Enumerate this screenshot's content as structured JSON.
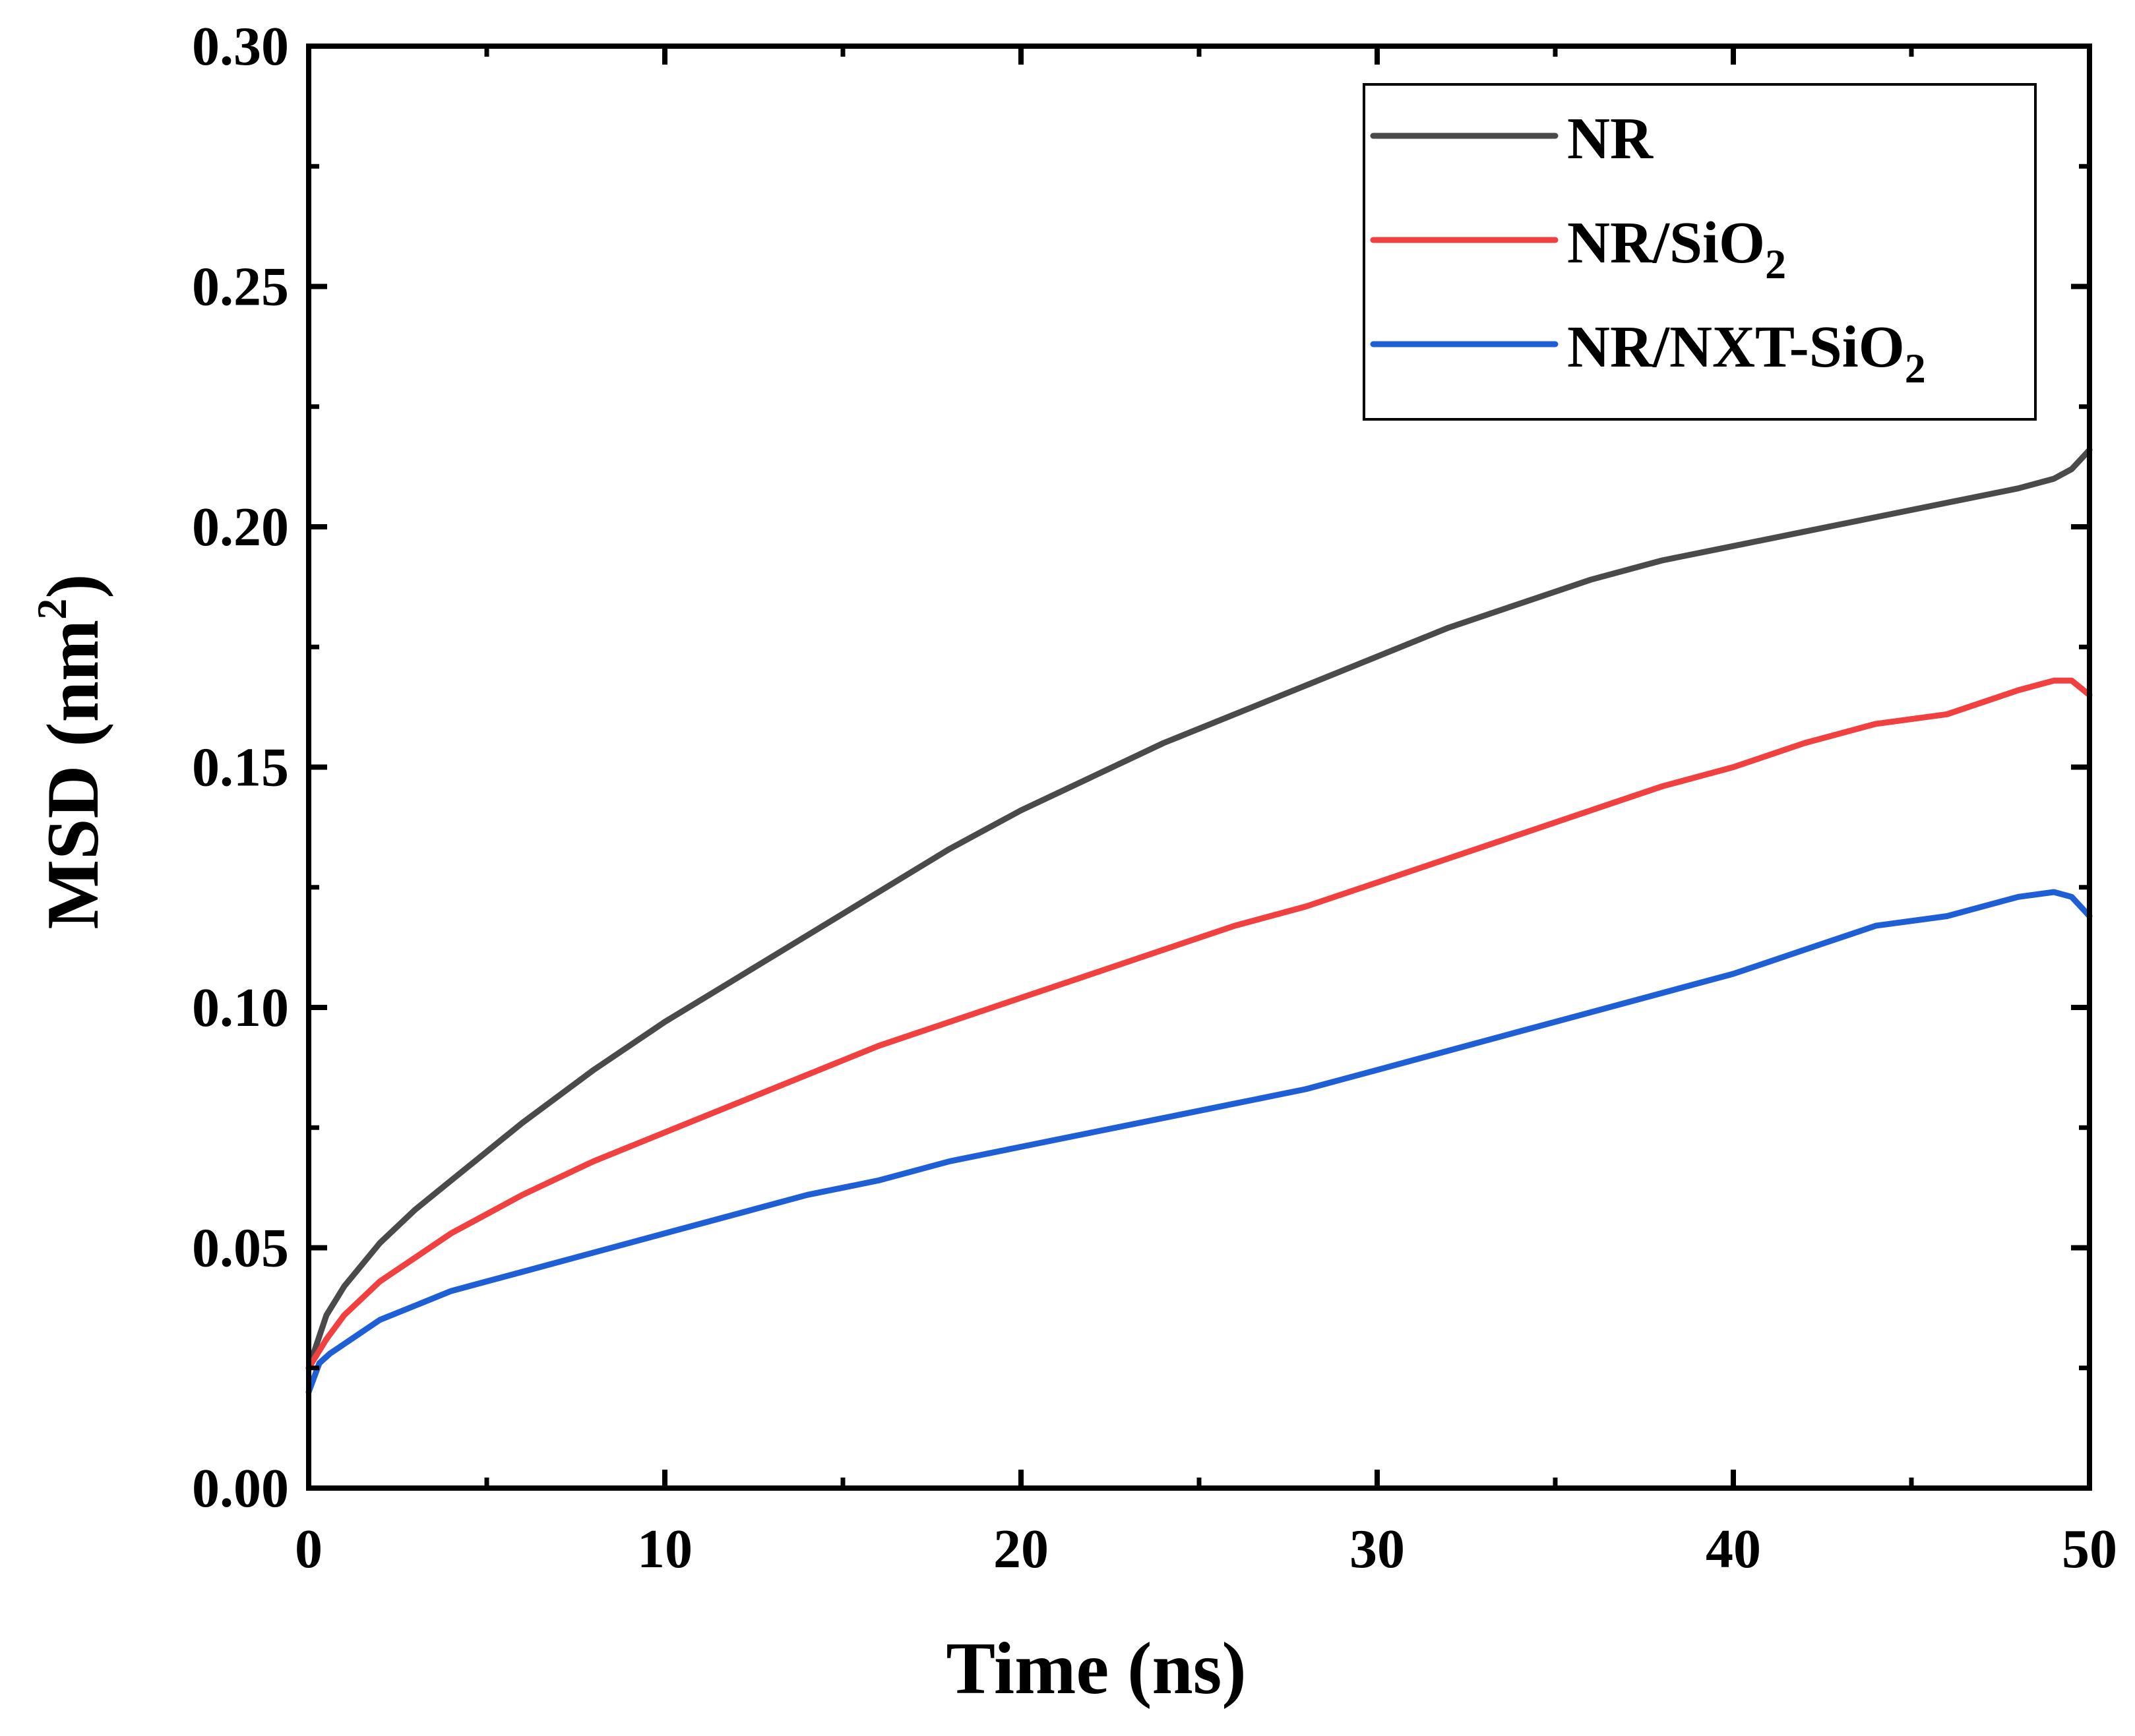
{
  "chart_data": {
    "type": "line",
    "title": "",
    "xlabel": "Time (ns)",
    "ylabel_main": "MSD (nm",
    "ylabel_sup": "2",
    "ylabel_close": ")",
    "xlim": [
      0,
      50
    ],
    "ylim": [
      0,
      0.3
    ],
    "xticks": [
      0,
      10,
      20,
      30,
      40,
      50
    ],
    "xtick_labels": [
      "0",
      "10",
      "20",
      "30",
      "40",
      "50"
    ],
    "yticks": [
      0.0,
      0.05,
      0.1,
      0.15,
      0.2,
      0.25,
      0.3
    ],
    "ytick_labels": [
      "0.00",
      "0.05",
      "0.10",
      "0.15",
      "0.20",
      "0.25",
      "0.30"
    ],
    "grid": false,
    "legend_position": "top-right",
    "series": [
      {
        "name": "NR",
        "legend_main": "NR",
        "legend_sub": "",
        "legend_tail": "",
        "color": "#4a4a4a",
        "x": [
          0,
          0.5,
          1,
          2,
          3,
          4,
          5,
          6,
          8,
          10,
          12,
          14,
          16,
          18,
          20,
          22,
          24,
          26,
          28,
          30,
          32,
          34,
          36,
          38,
          40,
          42,
          44,
          46,
          48,
          49,
          49.5,
          50
        ],
        "y": [
          0.025,
          0.036,
          0.042,
          0.051,
          0.058,
          0.064,
          0.07,
          0.076,
          0.087,
          0.097,
          0.106,
          0.115,
          0.124,
          0.133,
          0.141,
          0.148,
          0.155,
          0.161,
          0.167,
          0.173,
          0.179,
          0.184,
          0.189,
          0.193,
          0.196,
          0.199,
          0.202,
          0.205,
          0.208,
          0.21,
          0.212,
          0.216
        ]
      },
      {
        "name": "NR/SiO2",
        "legend_main": "NR/SiO",
        "legend_sub": "2",
        "legend_tail": "",
        "color": "#f04040",
        "x": [
          0,
          0.5,
          1,
          2,
          3,
          4,
          5,
          6,
          8,
          10,
          12,
          14,
          16,
          18,
          20,
          22,
          24,
          26,
          28,
          30,
          32,
          34,
          36,
          38,
          40,
          42,
          44,
          46,
          48,
          49,
          49.5,
          50
        ],
        "y": [
          0.025,
          0.031,
          0.036,
          0.043,
          0.048,
          0.053,
          0.057,
          0.061,
          0.068,
          0.074,
          0.08,
          0.086,
          0.092,
          0.097,
          0.102,
          0.107,
          0.112,
          0.117,
          0.121,
          0.126,
          0.131,
          0.136,
          0.141,
          0.146,
          0.15,
          0.155,
          0.159,
          0.161,
          0.166,
          0.168,
          0.168,
          0.165
        ]
      },
      {
        "name": "NR/NXT-SiO2",
        "legend_main": "NR/NXT-SiO",
        "legend_sub": "2",
        "legend_tail": "",
        "color": "#1f5fd6",
        "x": [
          0,
          0.3,
          0.6,
          1,
          2,
          3,
          4,
          5,
          6,
          8,
          10,
          12,
          14,
          16,
          18,
          20,
          22,
          24,
          26,
          28,
          30,
          32,
          34,
          36,
          38,
          40,
          42,
          44,
          46,
          48,
          49,
          49.5,
          50
        ],
        "y": [
          0.02,
          0.026,
          0.028,
          0.03,
          0.035,
          0.038,
          0.041,
          0.043,
          0.045,
          0.049,
          0.053,
          0.057,
          0.061,
          0.064,
          0.068,
          0.071,
          0.074,
          0.077,
          0.08,
          0.083,
          0.087,
          0.091,
          0.095,
          0.099,
          0.103,
          0.107,
          0.112,
          0.117,
          0.119,
          0.123,
          0.124,
          0.123,
          0.119
        ]
      }
    ]
  }
}
